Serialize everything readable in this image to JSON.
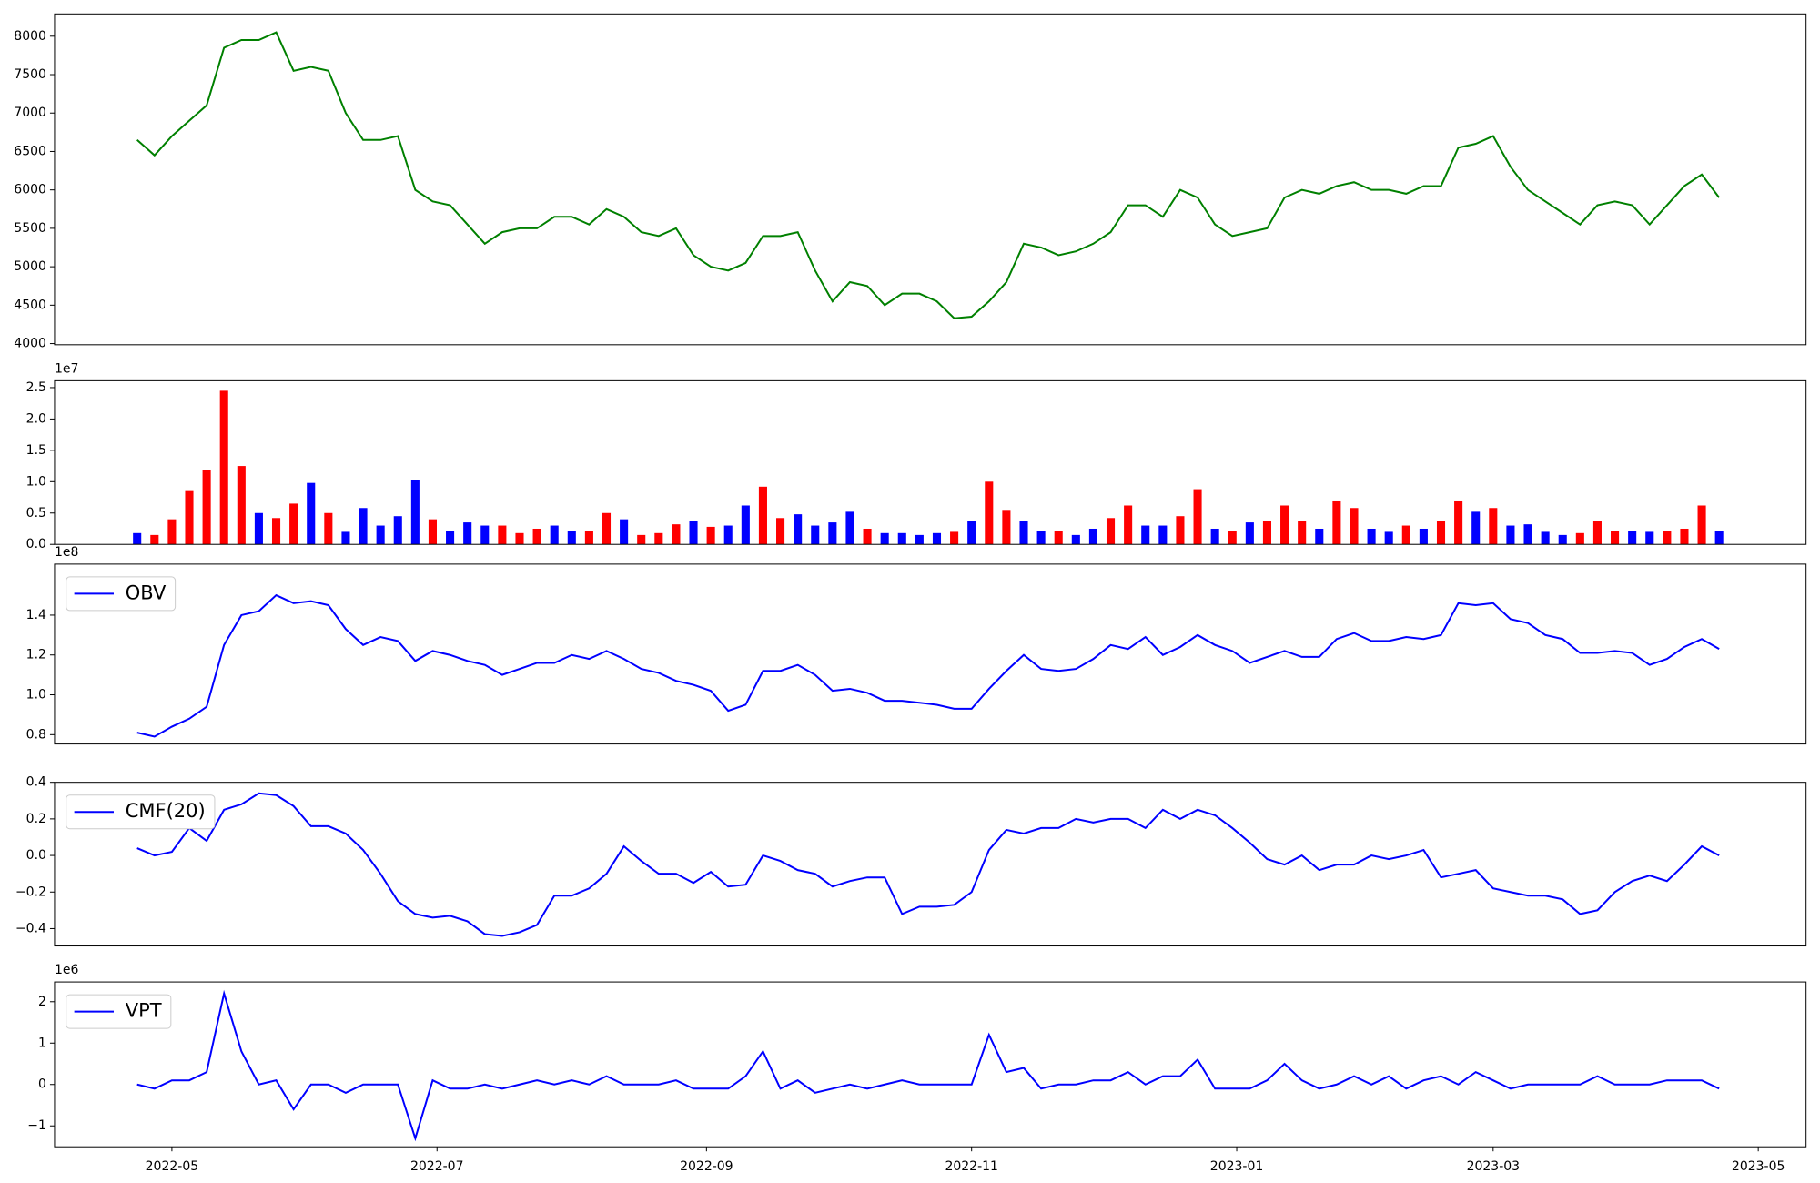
{
  "chart_data": [
    {
      "type": "line",
      "color": "#008000",
      "x": [
        -8,
        -4,
        0,
        4,
        8,
        12,
        16,
        20,
        24,
        28,
        32,
        36,
        40,
        44,
        48,
        52,
        56,
        60,
        64,
        68,
        72,
        76,
        80,
        84,
        88,
        92,
        96,
        100,
        104,
        108,
        112,
        116,
        120,
        124,
        128,
        132,
        136,
        140,
        144,
        148,
        152,
        156,
        160,
        164,
        168,
        172,
        176,
        180,
        184,
        188,
        192,
        196,
        200,
        204,
        208,
        212,
        216,
        220,
        224,
        228,
        232,
        236,
        240,
        244,
        248,
        252,
        256,
        260,
        264,
        268,
        272,
        276,
        280,
        284,
        288,
        292,
        296,
        300,
        304,
        308,
        312,
        316,
        320,
        324,
        328,
        332,
        336,
        340,
        344,
        348,
        352,
        356
      ],
      "values": [
        6650,
        6450,
        6700,
        6900,
        7100,
        7850,
        7950,
        7950,
        8050,
        7550,
        7600,
        7550,
        7000,
        6650,
        6650,
        6700,
        6000,
        5850,
        5800,
        5550,
        5300,
        5450,
        5500,
        5500,
        5650,
        5650,
        5550,
        5750,
        5650,
        5450,
        5400,
        5500,
        5150,
        5000,
        4950,
        5050,
        5400,
        5400,
        5450,
        4950,
        4550,
        4800,
        4750,
        4500,
        4650,
        4650,
        4550,
        4330,
        4350,
        4550,
        4800,
        5300,
        5250,
        5150,
        5200,
        5300,
        5450,
        5800,
        5800,
        5650,
        6000,
        5900,
        5550,
        5400,
        5450,
        5500,
        5900,
        6000,
        5950,
        6050,
        6100,
        6000,
        6000,
        5950,
        6050,
        6050,
        6550,
        6600,
        6700,
        6300,
        6000,
        5850,
        5700,
        5550,
        5800,
        5850,
        5800,
        5550,
        5800,
        6050,
        6200,
        5900
      ],
      "xlim": [
        -27,
        376
      ],
      "ylim": [
        3985,
        8290
      ],
      "yticks": [
        4000,
        4500,
        5000,
        5500,
        6000,
        6500,
        7000,
        7500,
        8000
      ]
    },
    {
      "type": "bar",
      "offset_text": "1e7",
      "x": [
        -8,
        -4,
        0,
        4,
        8,
        12,
        16,
        20,
        24,
        28,
        32,
        36,
        40,
        44,
        48,
        52,
        56,
        60,
        64,
        68,
        72,
        76,
        80,
        84,
        88,
        92,
        96,
        100,
        104,
        108,
        112,
        116,
        120,
        124,
        128,
        132,
        136,
        140,
        144,
        148,
        152,
        156,
        160,
        164,
        168,
        172,
        176,
        180,
        184,
        188,
        192,
        196,
        200,
        204,
        208,
        212,
        216,
        220,
        224,
        228,
        232,
        236,
        240,
        244,
        248,
        252,
        256,
        260,
        264,
        268,
        272,
        276,
        280,
        284,
        288,
        292,
        296,
        300,
        304,
        308,
        312,
        316,
        320,
        324,
        328,
        332,
        336,
        340,
        344,
        348,
        352,
        356
      ],
      "values": [
        0.18,
        0.15,
        0.4,
        0.85,
        1.18,
        2.45,
        1.25,
        0.5,
        0.42,
        0.65,
        0.98,
        0.5,
        0.2,
        0.58,
        0.3,
        0.45,
        1.03,
        0.4,
        0.22,
        0.35,
        0.3,
        0.3,
        0.18,
        0.25,
        0.3,
        0.22,
        0.22,
        0.5,
        0.4,
        0.15,
        0.18,
        0.32,
        0.38,
        0.28,
        0.3,
        0.62,
        0.92,
        0.42,
        0.48,
        0.3,
        0.35,
        0.52,
        0.25,
        0.18,
        0.18,
        0.15,
        0.18,
        0.2,
        0.38,
        1.0,
        0.55,
        0.38,
        0.22,
        0.22,
        0.15,
        0.25,
        0.42,
        0.62,
        0.3,
        0.3,
        0.45,
        0.88,
        0.25,
        0.22,
        0.35,
        0.38,
        0.62,
        0.38,
        0.25,
        0.7,
        0.58,
        0.25,
        0.2,
        0.3,
        0.25,
        0.38,
        0.7,
        0.52,
        0.58,
        0.3,
        0.32,
        0.2,
        0.15,
        0.18,
        0.38,
        0.22,
        0.22,
        0.2,
        0.22,
        0.25,
        0.62,
        0.22
      ],
      "bar_colors": [
        "blue",
        "red",
        "red",
        "red",
        "red",
        "red",
        "red",
        "blue",
        "red",
        "red",
        "blue",
        "red",
        "blue",
        "blue",
        "blue",
        "blue",
        "blue",
        "red",
        "blue",
        "blue",
        "blue",
        "red",
        "red",
        "red",
        "blue",
        "blue",
        "red",
        "red",
        "blue",
        "red",
        "red",
        "red",
        "blue",
        "red",
        "blue",
        "blue",
        "red",
        "red",
        "blue",
        "blue",
        "blue",
        "blue",
        "red",
        "blue",
        "blue",
        "blue",
        "blue",
        "red",
        "blue",
        "red",
        "red",
        "blue",
        "blue",
        "red",
        "blue",
        "blue",
        "red",
        "red",
        "blue",
        "blue",
        "red",
        "red",
        "blue",
        "red",
        "blue",
        "red",
        "red",
        "red",
        "blue",
        "red",
        "red",
        "blue",
        "blue",
        "red",
        "blue",
        "red",
        "red",
        "blue",
        "red",
        "blue",
        "blue",
        "blue",
        "blue",
        "red",
        "red",
        "red",
        "blue",
        "blue",
        "red",
        "red",
        "red",
        "blue"
      ],
      "xlim": [
        -27,
        376
      ],
      "ylim": [
        0,
        2.61
      ],
      "yticks": [
        {
          "value": 0,
          "label": "0.0"
        },
        0.5,
        {
          "value": 1,
          "label": "1.0"
        },
        1.5,
        {
          "value": 2,
          "label": "2.0"
        },
        2.5
      ]
    },
    {
      "type": "line",
      "offset_text": "1e8",
      "legend": "upper left",
      "x": [
        -8,
        -4,
        0,
        4,
        8,
        12,
        16,
        20,
        24,
        28,
        32,
        36,
        40,
        44,
        48,
        52,
        56,
        60,
        64,
        68,
        72,
        76,
        80,
        84,
        88,
        92,
        96,
        100,
        104,
        108,
        112,
        116,
        120,
        124,
        128,
        132,
        136,
        140,
        144,
        148,
        152,
        156,
        160,
        164,
        168,
        172,
        176,
        180,
        184,
        188,
        192,
        196,
        200,
        204,
        208,
        212,
        216,
        220,
        224,
        228,
        232,
        236,
        240,
        244,
        248,
        252,
        256,
        260,
        264,
        268,
        272,
        276,
        280,
        284,
        288,
        292,
        296,
        300,
        304,
        308,
        312,
        316,
        320,
        324,
        328,
        332,
        336,
        340,
        344,
        348,
        352,
        356
      ],
      "series": [
        {
          "name": "OBV",
          "color": "#0000ff",
          "values": [
            0.81,
            0.79,
            0.84,
            0.88,
            0.94,
            1.25,
            1.4,
            1.42,
            1.5,
            1.46,
            1.47,
            1.45,
            1.33,
            1.25,
            1.29,
            1.27,
            1.17,
            1.22,
            1.2,
            1.17,
            1.15,
            1.1,
            1.13,
            1.16,
            1.16,
            1.2,
            1.18,
            1.22,
            1.18,
            1.13,
            1.11,
            1.07,
            1.05,
            1.02,
            0.92,
            0.95,
            1.12,
            1.12,
            1.15,
            1.1,
            1.02,
            1.03,
            1.01,
            0.97,
            0.97,
            0.96,
            0.95,
            0.93,
            0.93,
            1.03,
            1.12,
            1.2,
            1.13,
            1.12,
            1.13,
            1.18,
            1.25,
            1.23,
            1.29,
            1.2,
            1.24,
            1.3,
            1.25,
            1.22,
            1.16,
            1.19,
            1.22,
            1.19,
            1.19,
            1.28,
            1.31,
            1.27,
            1.27,
            1.29,
            1.28,
            1.3,
            1.46,
            1.45,
            1.46,
            1.38,
            1.36,
            1.3,
            1.28,
            1.21,
            1.21,
            1.22,
            1.21,
            1.15,
            1.18,
            1.24,
            1.28,
            1.23
          ]
        }
      ],
      "xlim": [
        -27,
        376
      ],
      "ylim": [
        0.753,
        1.656
      ],
      "yticks": [
        0.8,
        {
          "value": 1,
          "label": "1.0"
        },
        1.2,
        1.4
      ]
    },
    {
      "type": "line",
      "legend": "upper left",
      "x": [
        -8,
        -4,
        0,
        4,
        8,
        12,
        16,
        20,
        24,
        28,
        32,
        36,
        40,
        44,
        48,
        52,
        56,
        60,
        64,
        68,
        72,
        76,
        80,
        84,
        88,
        92,
        96,
        100,
        104,
        108,
        112,
        116,
        120,
        124,
        128,
        132,
        136,
        140,
        144,
        148,
        152,
        156,
        160,
        164,
        168,
        172,
        176,
        180,
        184,
        188,
        192,
        196,
        200,
        204,
        208,
        212,
        216,
        220,
        224,
        228,
        232,
        236,
        240,
        244,
        248,
        252,
        256,
        260,
        264,
        268,
        272,
        276,
        280,
        284,
        288,
        292,
        296,
        300,
        304,
        308,
        312,
        316,
        320,
        324,
        328,
        332,
        336,
        340,
        344,
        348,
        352,
        356
      ],
      "series": [
        {
          "name": "CMF(20)",
          "color": "#0000ff",
          "values": [
            0.04,
            0.0,
            0.02,
            0.15,
            0.08,
            0.25,
            0.28,
            0.34,
            0.33,
            0.27,
            0.16,
            0.16,
            0.12,
            0.03,
            -0.1,
            -0.25,
            -0.32,
            -0.34,
            -0.33,
            -0.36,
            -0.43,
            -0.44,
            -0.42,
            -0.38,
            -0.22,
            -0.22,
            -0.18,
            -0.1,
            0.05,
            -0.03,
            -0.1,
            -0.1,
            -0.15,
            -0.09,
            -0.17,
            -0.16,
            0.0,
            -0.03,
            -0.08,
            -0.1,
            -0.17,
            -0.14,
            -0.12,
            -0.12,
            -0.32,
            -0.28,
            -0.28,
            -0.27,
            -0.2,
            0.03,
            0.14,
            0.12,
            0.15,
            0.15,
            0.2,
            0.18,
            0.2,
            0.2,
            0.15,
            0.25,
            0.2,
            0.25,
            0.22,
            0.15,
            0.07,
            -0.02,
            -0.05,
            0.0,
            -0.08,
            -0.05,
            -0.05,
            0.0,
            -0.02,
            0.0,
            0.03,
            -0.12,
            -0.1,
            -0.08,
            -0.18,
            -0.2,
            -0.22,
            -0.22,
            -0.24,
            -0.32,
            -0.3,
            -0.2,
            -0.14,
            -0.11,
            -0.14,
            -0.05,
            0.05,
            0.0
          ]
        }
      ],
      "xlim": [
        -27,
        376
      ],
      "ylim": [
        -0.495,
        0.4
      ],
      "yticks": [
        {
          "value": -0.4,
          "label": "−0.4"
        },
        {
          "value": -0.2,
          "label": "−0.2"
        },
        {
          "value": 0,
          "label": "0.0"
        },
        0.2,
        0.4
      ]
    },
    {
      "type": "line",
      "offset_text": "1e6",
      "legend": "upper left",
      "x": [
        -8,
        -4,
        0,
        4,
        8,
        12,
        16,
        20,
        24,
        28,
        32,
        36,
        40,
        44,
        48,
        52,
        56,
        60,
        64,
        68,
        72,
        76,
        80,
        84,
        88,
        92,
        96,
        100,
        104,
        108,
        112,
        116,
        120,
        124,
        128,
        132,
        136,
        140,
        144,
        148,
        152,
        156,
        160,
        164,
        168,
        172,
        176,
        180,
        184,
        188,
        192,
        196,
        200,
        204,
        208,
        212,
        216,
        220,
        224,
        228,
        232,
        236,
        240,
        244,
        248,
        252,
        256,
        260,
        264,
        268,
        272,
        276,
        280,
        284,
        288,
        292,
        296,
        300,
        304,
        308,
        312,
        316,
        320,
        324,
        328,
        332,
        336,
        340,
        344,
        348,
        352,
        356
      ],
      "series": [
        {
          "name": "VPT",
          "color": "#0000ff",
          "values": [
            0.0,
            -0.1,
            0.1,
            0.1,
            0.3,
            2.2,
            0.8,
            0.0,
            0.1,
            -0.6,
            0.0,
            0.0,
            -0.2,
            0.0,
            0.0,
            0.0,
            -1.3,
            0.1,
            -0.1,
            -0.1,
            0.0,
            -0.1,
            0.0,
            0.1,
            0.0,
            0.1,
            0.0,
            0.2,
            0.0,
            0.0,
            0.0,
            0.1,
            -0.1,
            -0.1,
            -0.1,
            0.2,
            0.8,
            -0.1,
            0.1,
            -0.2,
            -0.1,
            0.0,
            -0.1,
            0.0,
            0.1,
            0.0,
            0.0,
            0.0,
            0.0,
            1.2,
            0.3,
            0.4,
            -0.1,
            0.0,
            0.0,
            0.1,
            0.1,
            0.3,
            0.0,
            0.2,
            0.2,
            0.6,
            -0.1,
            -0.1,
            -0.1,
            0.1,
            0.5,
            0.1,
            -0.1,
            0.0,
            0.2,
            0.0,
            0.2,
            -0.1,
            0.1,
            0.2,
            0.0,
            0.3,
            0.1,
            -0.1,
            0.0,
            0.0,
            0.0,
            0.0,
            0.2,
            0.0,
            0.0,
            0.0,
            0.1,
            0.1,
            0.1,
            -0.1
          ]
        }
      ],
      "xlim": [
        -27,
        376
      ],
      "ylim": [
        -1.505,
        2.477
      ],
      "yticks": [
        {
          "value": -1,
          "label": "−1"
        },
        0,
        1,
        2
      ],
      "xticks": [
        {
          "value": 0,
          "label": "2022-05"
        },
        {
          "value": 61,
          "label": "2022-07"
        },
        {
          "value": 123,
          "label": "2022-09"
        },
        {
          "value": 184,
          "label": "2022-11"
        },
        {
          "value": 245,
          "label": "2023-01"
        },
        {
          "value": 304,
          "label": "2023-03"
        },
        {
          "value": 365,
          "label": "2023-05"
        }
      ]
    }
  ]
}
